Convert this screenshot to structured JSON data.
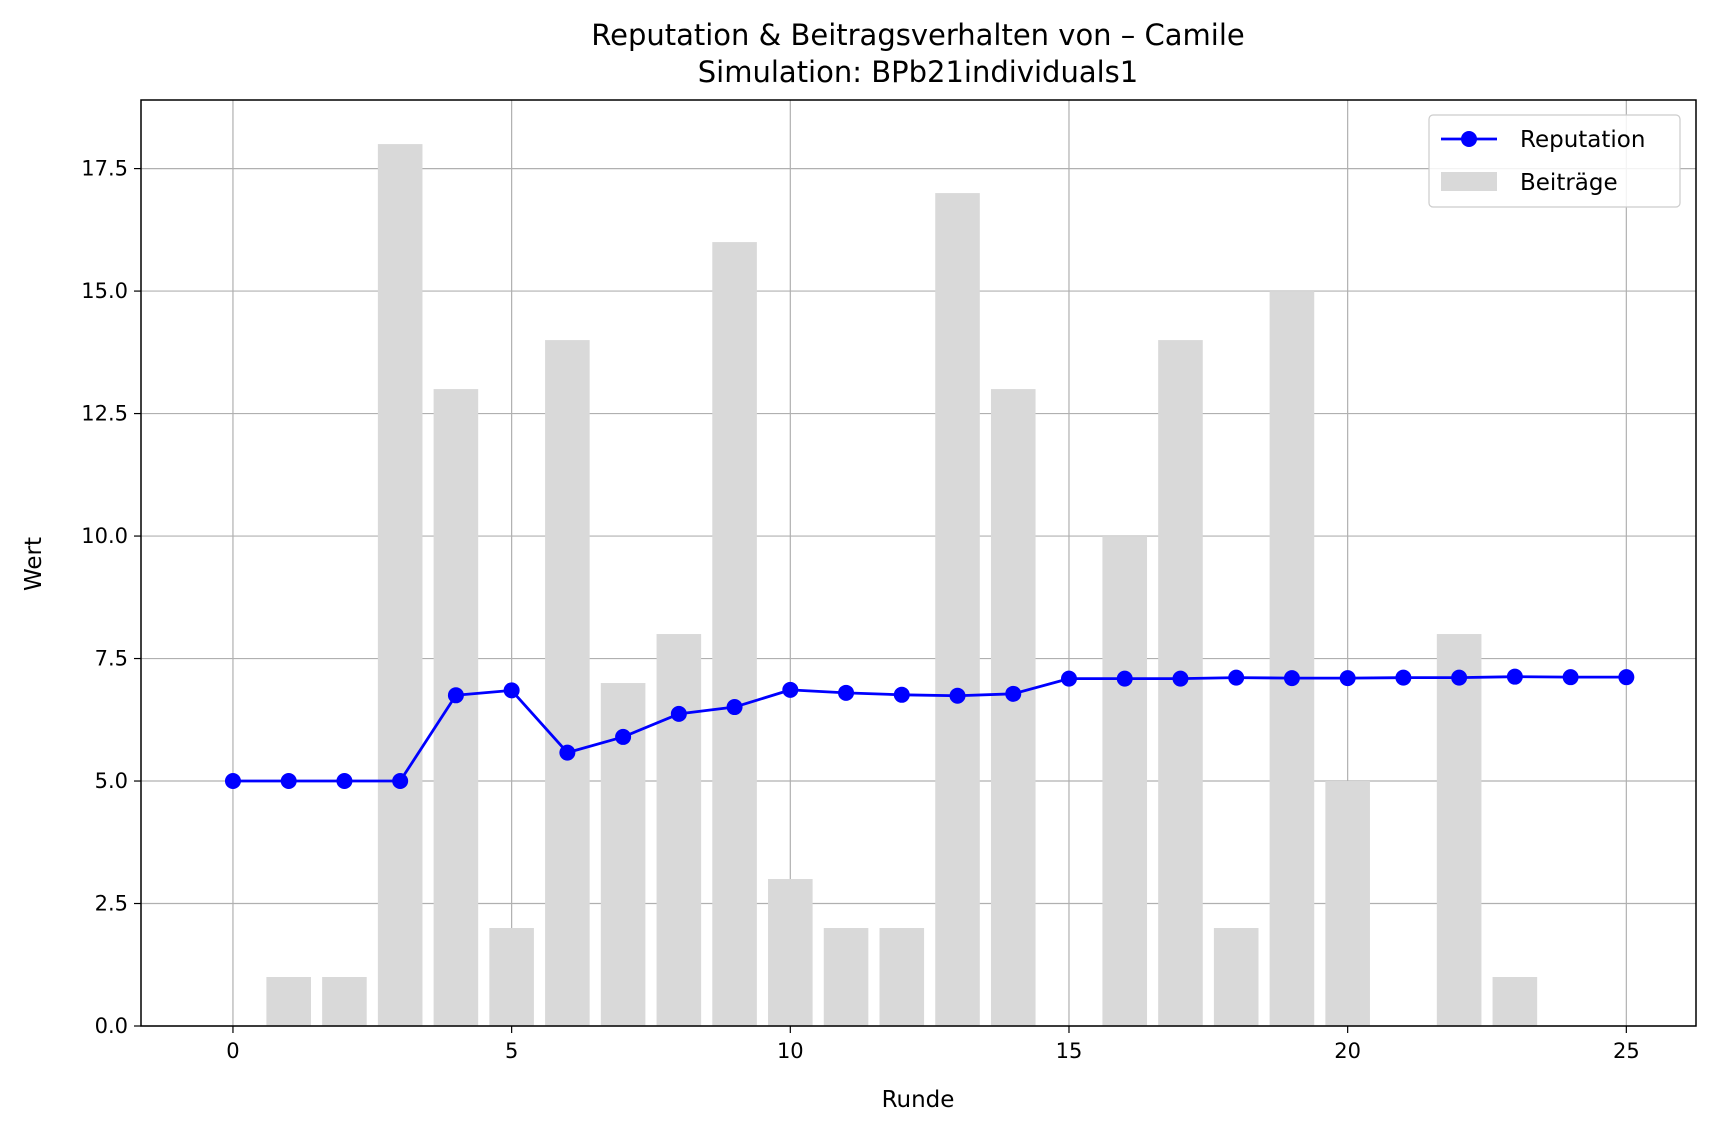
{
  "chart_data": {
    "type": "bar+line",
    "title": "Reputation & Beitragsverhalten von – Camile",
    "subtitle": "Simulation: BPb21individuals1",
    "xlabel": "Runde",
    "ylabel": "Wert",
    "xlim": [
      -1.65,
      26.25
    ],
    "ylim": [
      0,
      18.9
    ],
    "x_ticks": [
      0,
      5,
      10,
      15,
      20,
      25
    ],
    "x_tick_labels": [
      "0",
      "5",
      "10",
      "15",
      "20",
      "25"
    ],
    "y_ticks": [
      0,
      2.5,
      5,
      7.5,
      10,
      12.5,
      15,
      17.5
    ],
    "y_tick_labels": [
      "0.0",
      "2.5",
      "5.0",
      "7.5",
      "10.0",
      "12.5",
      "15.0",
      "17.5"
    ],
    "grid": true,
    "legend_position": "top-right",
    "x": [
      0,
      1,
      2,
      3,
      4,
      5,
      6,
      7,
      8,
      9,
      10,
      11,
      12,
      13,
      14,
      15,
      16,
      17,
      18,
      19,
      20,
      21,
      22,
      23,
      24,
      25
    ],
    "series": [
      {
        "name": "Reputation",
        "kind": "line",
        "color": "#0000ff",
        "values": [
          5.0,
          5.0,
          5.0,
          5.0,
          6.75,
          6.85,
          5.58,
          5.9,
          6.37,
          6.51,
          6.86,
          6.8,
          6.76,
          6.74,
          6.78,
          7.09,
          7.09,
          7.09,
          7.11,
          7.1,
          7.1,
          7.11,
          7.11,
          7.13,
          7.12,
          7.12
        ]
      },
      {
        "name": "Beiträge",
        "kind": "bar",
        "color": "#d9d9d9",
        "values": [
          0,
          1,
          1,
          18,
          13,
          2,
          14,
          7,
          8,
          16,
          3,
          2,
          2,
          17,
          13,
          0,
          10,
          14,
          2,
          15,
          5,
          0,
          8,
          1,
          0,
          0
        ]
      }
    ]
  }
}
